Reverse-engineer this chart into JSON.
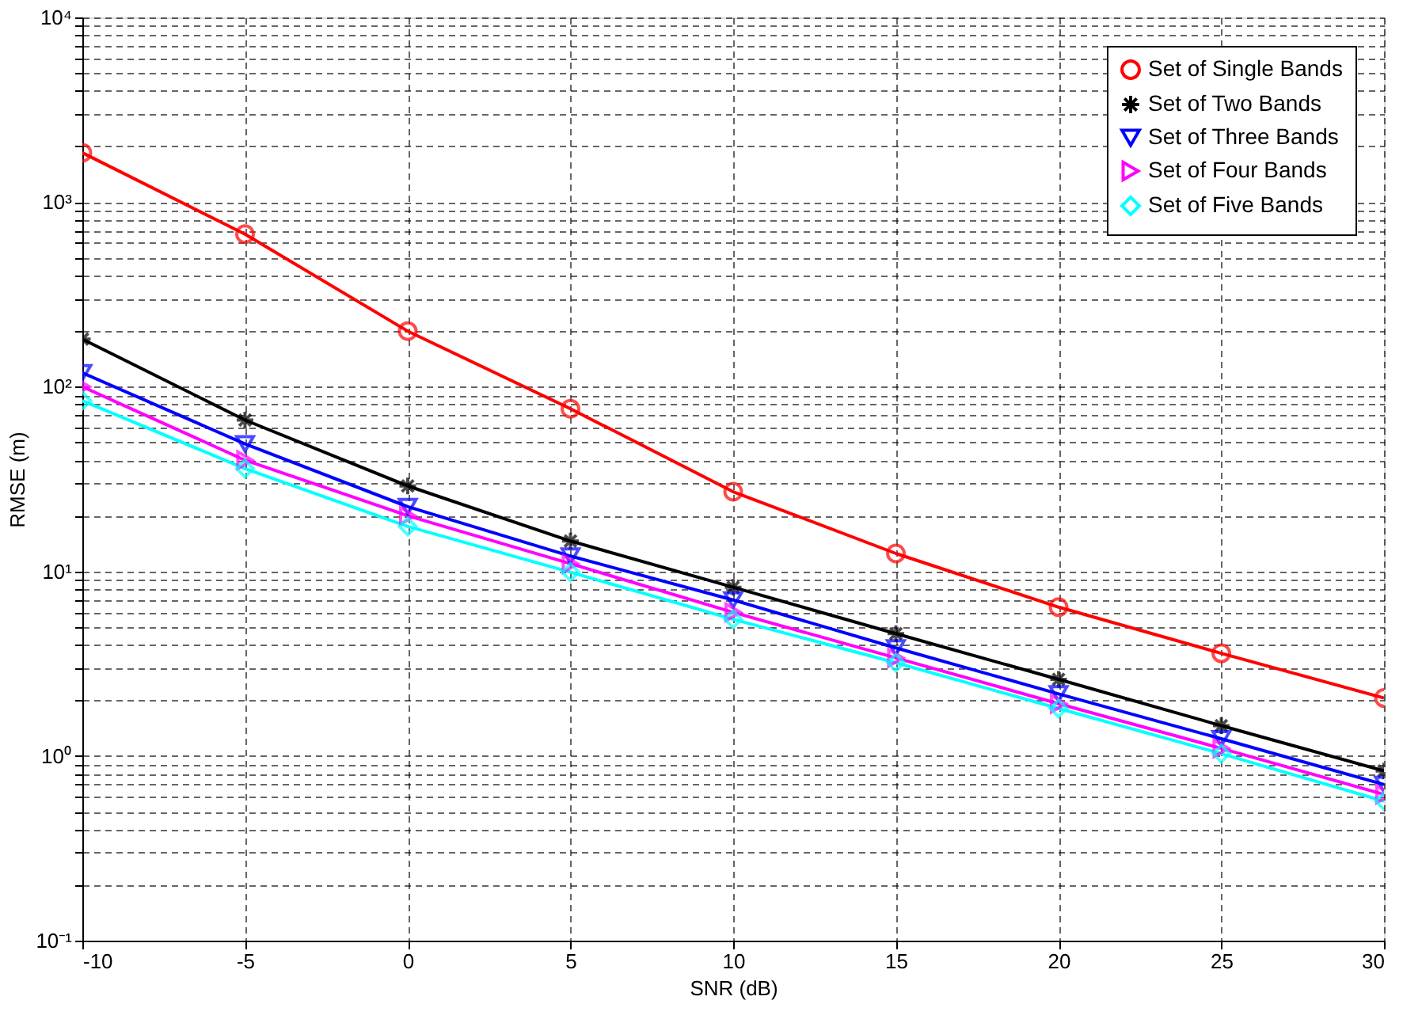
{
  "chart_data": {
    "type": "line",
    "xlabel": "SNR (dB)",
    "ylabel": "RMSE (m)",
    "x": [
      -10,
      -5,
      0,
      5,
      10,
      15,
      20,
      25,
      30
    ],
    "xlim": [
      -10,
      30
    ],
    "xticks": [
      -10,
      -5,
      0,
      5,
      10,
      15,
      20,
      25,
      30
    ],
    "log": "y",
    "ylim": [
      0.1,
      10000
    ],
    "yticks": [
      {
        "value": 0.1,
        "label": "10⁻¹"
      },
      {
        "value": 0.2,
        "label": null
      },
      {
        "value": 0.3,
        "label": null
      },
      {
        "value": 0.4,
        "label": null
      },
      {
        "value": 0.5,
        "label": null
      },
      {
        "value": 0.6,
        "label": null
      },
      {
        "value": 0.7,
        "label": null
      },
      {
        "value": 0.8,
        "label": null
      },
      {
        "value": 0.9,
        "label": null
      },
      {
        "value": 1,
        "label": "10⁰"
      },
      {
        "value": 2,
        "label": null
      },
      {
        "value": 3,
        "label": null
      },
      {
        "value": 4,
        "label": null
      },
      {
        "value": 5,
        "label": null
      },
      {
        "value": 6,
        "label": null
      },
      {
        "value": 7,
        "label": null
      },
      {
        "value": 8,
        "label": null
      },
      {
        "value": 9,
        "label": null
      },
      {
        "value": 10,
        "label": "10¹"
      },
      {
        "value": 20,
        "label": null
      },
      {
        "value": 30,
        "label": null
      },
      {
        "value": 40,
        "label": null
      },
      {
        "value": 50,
        "label": null
      },
      {
        "value": 60,
        "label": null
      },
      {
        "value": 70,
        "label": null
      },
      {
        "value": 80,
        "label": null
      },
      {
        "value": 90,
        "label": null
      },
      {
        "value": 100,
        "label": "10²"
      },
      {
        "value": 200,
        "label": null
      },
      {
        "value": 300,
        "label": null
      },
      {
        "value": 400,
        "label": null
      },
      {
        "value": 500,
        "label": null
      },
      {
        "value": 600,
        "label": null
      },
      {
        "value": 700,
        "label": null
      },
      {
        "value": 800,
        "label": null
      },
      {
        "value": 900,
        "label": null
      },
      {
        "value": 1000,
        "label": "10³"
      },
      {
        "value": 2000,
        "label": null
      },
      {
        "value": 3000,
        "label": null
      },
      {
        "value": 4000,
        "label": null
      },
      {
        "value": 5000,
        "label": null
      },
      {
        "value": 6000,
        "label": null
      },
      {
        "value": 7000,
        "label": null
      },
      {
        "value": 8000,
        "label": null
      },
      {
        "value": 9000,
        "label": null
      },
      {
        "value": 10000,
        "label": "10⁴"
      }
    ],
    "grid": true,
    "legend": "top right",
    "series": [
      {
        "name": "Set of Single Bands",
        "color": "#ff0000",
        "marker": "circle",
        "values": [
          1850,
          670,
          200,
          76,
          27,
          12.5,
          6.4,
          3.6,
          2.06
        ]
      },
      {
        "name": "Set of Two Bands",
        "color": "#000000",
        "marker": "cross",
        "values": [
          181,
          66,
          29,
          14.6,
          8.2,
          4.6,
          2.6,
          1.46,
          0.83
        ]
      },
      {
        "name": "Set of Three Bands",
        "color": "#0000ff",
        "marker": "triangle-down",
        "values": [
          119,
          49,
          22.4,
          12.1,
          7.0,
          3.85,
          2.17,
          1.24,
          0.7
        ]
      },
      {
        "name": "Set of Four Bands",
        "color": "#ff00ff",
        "marker": "triangle-right",
        "values": [
          100,
          40,
          20,
          11,
          6.0,
          3.4,
          1.92,
          1.1,
          0.62
        ]
      },
      {
        "name": "Set of Five Bands",
        "color": "#00ffff",
        "marker": "diamond",
        "values": [
          84,
          36,
          17.5,
          9.9,
          5.5,
          3.2,
          1.81,
          1.03,
          0.57
        ]
      }
    ]
  }
}
